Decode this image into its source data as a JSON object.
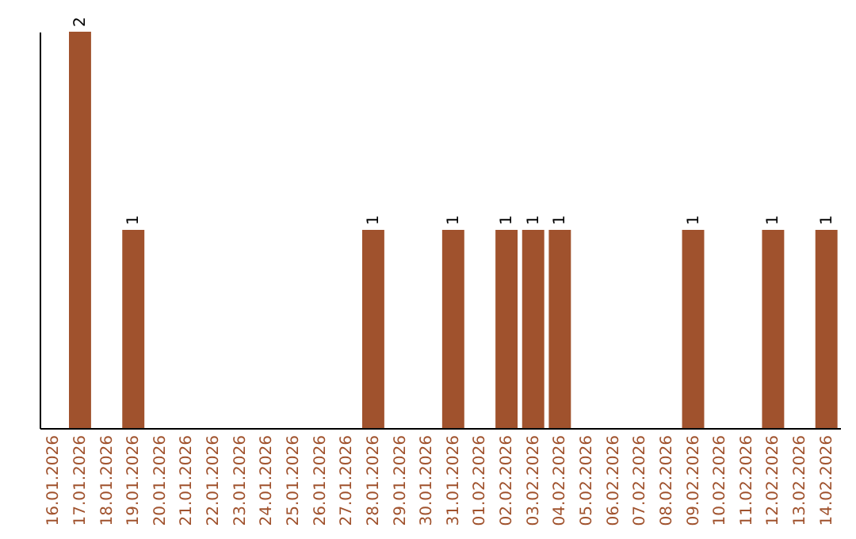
{
  "chart_data": {
    "type": "bar",
    "relative": false,
    "categories": [
      "16.01.2026",
      "17.01.2026",
      "18.01.2026",
      "19.01.2026",
      "20.01.2026",
      "21.01.2026",
      "22.01.2026",
      "23.01.2026",
      "24.01.2026",
      "25.01.2026",
      "26.01.2026",
      "27.01.2026",
      "28.01.2026",
      "29.01.2026",
      "30.01.2026",
      "31.01.2026",
      "01.02.2026",
      "02.02.2026",
      "03.02.2026",
      "04.02.2026",
      "05.02.2026",
      "06.02.2026",
      "07.02.2026",
      "08.02.2026",
      "09.02.2026",
      "10.02.2026",
      "11.02.2026",
      "12.02.2026",
      "13.02.2026",
      "14.02.2026"
    ],
    "values": [
      0,
      2,
      0,
      1,
      0,
      0,
      0,
      0,
      0,
      0,
      0,
      0,
      1,
      0,
      0,
      1,
      0,
      1,
      1,
      1,
      0,
      0,
      0,
      0,
      1,
      0,
      0,
      1,
      0,
      1
    ],
    "value_labels": [
      null,
      "2",
      null,
      "1",
      null,
      null,
      null,
      null,
      null,
      null,
      null,
      null,
      "1",
      null,
      null,
      "1",
      null,
      "1",
      "1",
      "1",
      null,
      null,
      null,
      null,
      "1",
      null,
      null,
      "1",
      null,
      "1"
    ],
    "color": "#a0522d"
  }
}
